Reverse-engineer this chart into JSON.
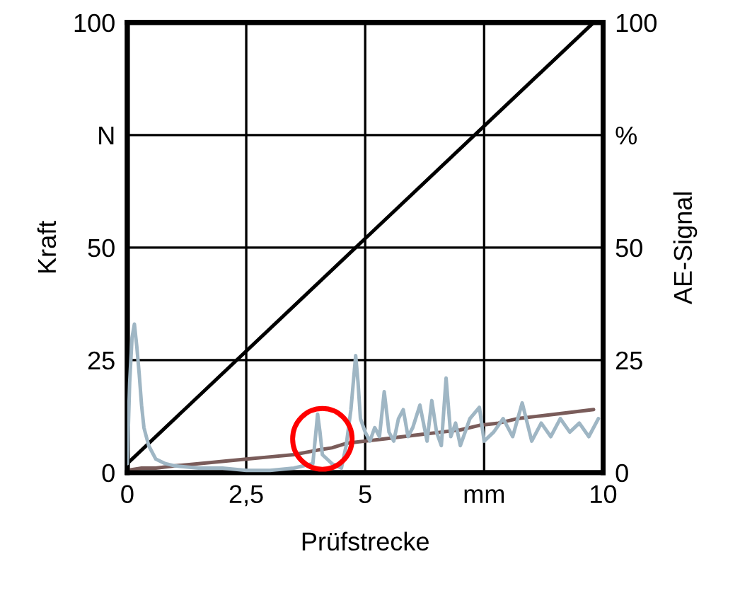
{
  "chart_data": {
    "type": "line",
    "xlabel": "Prüfstrecke",
    "ylabel": "Kraft",
    "y2label": "AE-Signal",
    "xlim": [
      0,
      10
    ],
    "xticks": [
      0,
      {
        "value": 2.5,
        "label": "2,5"
      },
      5,
      {
        "value": 7.5,
        "label": "mm"
      },
      10
    ],
    "ylim": [
      0,
      100
    ],
    "yticks": [
      0,
      25,
      50,
      {
        "value": 75,
        "label": "N"
      },
      100
    ],
    "y2lim": [
      0,
      100
    ],
    "y2ticks": [
      0,
      25,
      50,
      {
        "value": 75,
        "label": "%"
      },
      100
    ],
    "grid": true,
    "line_style": "solid",
    "marker": "none",
    "series": [
      {
        "color": "#9fb6c4",
        "axis": "y2",
        "x": [
          0,
          0.05,
          0.1,
          0.15,
          0.2,
          0.25,
          0.3,
          0.35,
          0.45,
          0.6,
          0.8,
          1.0,
          1.5,
          2.0,
          2.5,
          3.0,
          3.5,
          3.9,
          4.0,
          4.05,
          4.1,
          4.2,
          4.3,
          4.5,
          4.6,
          4.7,
          4.8,
          4.85,
          4.9,
          5.0,
          5.1,
          5.2,
          5.3,
          5.4,
          5.5,
          5.6,
          5.7,
          5.8,
          5.9,
          6.0,
          6.15,
          6.3,
          6.4,
          6.5,
          6.6,
          6.7,
          6.8,
          6.9,
          7.0,
          7.2,
          7.4,
          7.5,
          7.7,
          7.9,
          8.1,
          8.3,
          8.5,
          8.7,
          8.9,
          9.1,
          9.3,
          9.5,
          9.7,
          9.9
        ],
        "values": [
          2,
          20,
          30,
          33,
          28,
          22,
          15,
          10,
          6,
          3,
          2,
          1.5,
          1,
          1,
          0.5,
          0.5,
          1,
          2,
          13,
          9,
          4,
          3,
          2,
          1,
          6,
          14,
          26,
          20,
          12,
          9,
          7,
          10,
          8,
          18,
          9,
          7,
          12,
          14,
          8,
          10,
          15,
          7,
          16,
          9,
          6,
          21,
          8,
          11,
          6,
          12,
          14.5,
          7,
          9,
          12,
          8,
          15.5,
          7,
          11,
          8,
          12,
          9,
          11,
          8,
          12
        ]
      },
      {
        "color": "#7a5c5a",
        "axis": "y",
        "x": [
          0,
          0.3,
          0.6,
          1.0,
          1.5,
          2.0,
          2.5,
          3.0,
          3.5,
          4.0,
          4.3,
          4.6,
          5.0,
          5.4,
          5.8,
          6.2,
          6.6,
          7.0,
          7.4,
          7.8,
          8.2,
          8.6,
          9.0,
          9.4,
          9.8
        ],
        "values": [
          0.5,
          1,
          1,
          1.5,
          2,
          2.5,
          3,
          3.5,
          4,
          5,
          5.5,
          6.5,
          7,
          7.5,
          8,
          8.5,
          9,
          9.5,
          10.5,
          11,
          12,
          12.5,
          13,
          13.5,
          14
        ]
      },
      {
        "color": "#000000",
        "axis": "y",
        "x": [
          0,
          9.8
        ],
        "values": [
          2,
          100
        ]
      }
    ]
  }
}
